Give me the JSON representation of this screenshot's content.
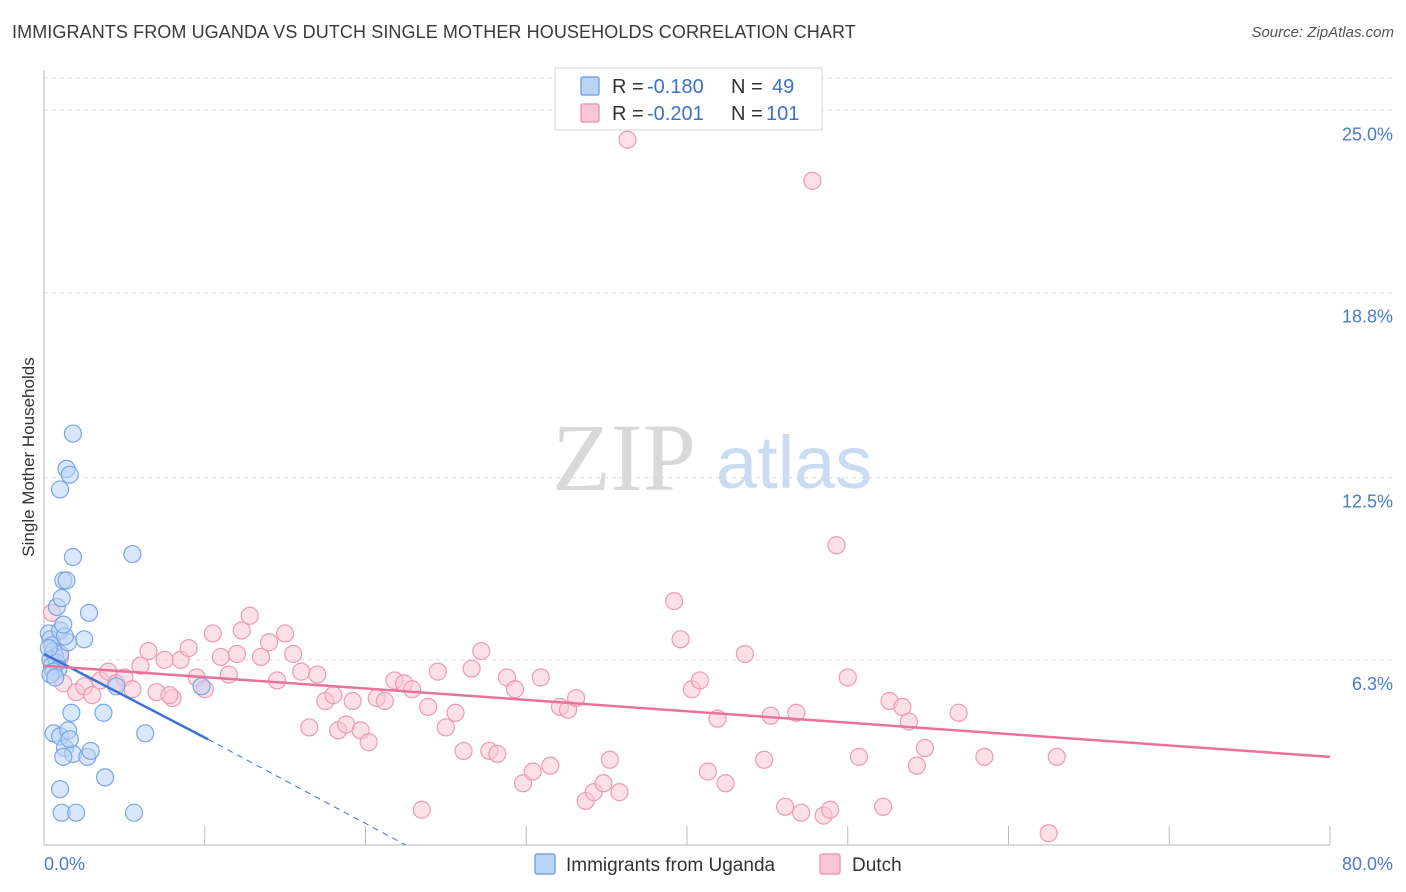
{
  "header": {
    "title": "IMMIGRANTS FROM UGANDA VS DUTCH SINGLE MOTHER HOUSEHOLDS CORRELATION CHART",
    "source": "Source: ZipAtlas.com"
  },
  "watermark": {
    "zip": "ZIP",
    "atlas": "atlas"
  },
  "legend": {
    "rows": [
      {
        "r_label": "R = ",
        "r_value": "-0.180",
        "n_label": "N = ",
        "n_value": "49"
      },
      {
        "r_label": "R = ",
        "r_value": "-0.201",
        "n_label": "N = ",
        "n_value": "101"
      }
    ]
  },
  "colors": {
    "uganda_fill": "#b9d3f5",
    "uganda_stroke": "#7aa6e3",
    "uganda_line": "#3a72d6",
    "dutch_fill": "#f9c6d6",
    "dutch_stroke": "#ee9ab5",
    "dutch_line": "#e8729c",
    "tick_text": "#4a7cc7",
    "grid": "#dcdcdc"
  },
  "chart_data": {
    "type": "scatter",
    "title": "IMMIGRANTS FROM UGANDA VS DUTCH SINGLE MOTHER HOUSEHOLDS CORRELATION CHART",
    "xlabel": "",
    "ylabel": "Single Mother Households",
    "xlim": [
      0,
      80
    ],
    "ylim": [
      0,
      26.1
    ],
    "x_tick_labels": [
      "0.0%",
      "80.0%"
    ],
    "y_ticks": [
      {
        "value": 6.3,
        "label": "6.3%"
      },
      {
        "value": 12.5,
        "label": "12.5%"
      },
      {
        "value": 18.8,
        "label": "18.8%"
      },
      {
        "value": 25.0,
        "label": "25.0%"
      }
    ],
    "series": [
      {
        "name": "Immigrants from Uganda",
        "r": -0.18,
        "n": 49,
        "trend": {
          "x0": 0,
          "y0": 6.5,
          "x1": 10.2,
          "y1": 3.6,
          "dash_to_x": 22.5,
          "dash_to_y": 0
        },
        "points": [
          [
            0.3,
            7.2
          ],
          [
            0.4,
            7.0
          ],
          [
            0.5,
            6.8
          ],
          [
            0.6,
            6.6
          ],
          [
            0.7,
            6.4
          ],
          [
            0.4,
            6.3
          ],
          [
            0.8,
            6.2
          ],
          [
            0.5,
            6.1
          ],
          [
            1.0,
            6.5
          ],
          [
            0.3,
            6.7
          ],
          [
            0.9,
            6.0
          ],
          [
            0.6,
            5.9
          ],
          [
            0.4,
            5.8
          ],
          [
            0.7,
            5.7
          ],
          [
            1.5,
            6.9
          ],
          [
            1.0,
            7.3
          ],
          [
            1.3,
            7.1
          ],
          [
            2.5,
            7.0
          ],
          [
            0.8,
            8.1
          ],
          [
            1.1,
            8.4
          ],
          [
            1.2,
            9.0
          ],
          [
            1.4,
            9.0
          ],
          [
            2.8,
            7.9
          ],
          [
            1.8,
            9.8
          ],
          [
            1.0,
            12.1
          ],
          [
            1.4,
            12.8
          ],
          [
            1.6,
            12.6
          ],
          [
            1.8,
            14.0
          ],
          [
            5.5,
            9.9
          ],
          [
            1.2,
            7.5
          ],
          [
            0.6,
            3.8
          ],
          [
            1.0,
            3.7
          ],
          [
            1.5,
            3.9
          ],
          [
            1.3,
            3.3
          ],
          [
            1.8,
            3.1
          ],
          [
            1.7,
            4.5
          ],
          [
            2.7,
            3.0
          ],
          [
            2.9,
            3.2
          ],
          [
            1.2,
            3.0
          ],
          [
            3.7,
            4.5
          ],
          [
            6.3,
            3.8
          ],
          [
            3.8,
            2.3
          ],
          [
            5.6,
            1.1
          ],
          [
            1.0,
            1.9
          ],
          [
            1.1,
            1.1
          ],
          [
            2.0,
            1.1
          ],
          [
            9.8,
            5.4
          ],
          [
            4.5,
            5.4
          ],
          [
            1.6,
            3.6
          ]
        ]
      },
      {
        "name": "Dutch",
        "r": -0.201,
        "n": 101,
        "trend": {
          "x0": 0,
          "y0": 6.1,
          "x1": 80,
          "y1": 3.0
        },
        "points": [
          [
            0.5,
            7.9
          ],
          [
            1.0,
            6.4
          ],
          [
            1.2,
            5.5
          ],
          [
            2.0,
            5.2
          ],
          [
            2.5,
            5.4
          ],
          [
            3.0,
            5.1
          ],
          [
            3.5,
            5.6
          ],
          [
            4.0,
            5.9
          ],
          [
            4.5,
            5.5
          ],
          [
            5.0,
            5.7
          ],
          [
            5.5,
            5.3
          ],
          [
            6.0,
            6.1
          ],
          [
            6.5,
            6.6
          ],
          [
            7.0,
            5.2
          ],
          [
            7.5,
            6.3
          ],
          [
            8.0,
            5.0
          ],
          [
            8.5,
            6.3
          ],
          [
            9.0,
            6.7
          ],
          [
            9.5,
            5.7
          ],
          [
            10.0,
            5.3
          ],
          [
            10.5,
            7.2
          ],
          [
            11.0,
            6.4
          ],
          [
            11.5,
            5.8
          ],
          [
            12.0,
            6.5
          ],
          [
            12.3,
            7.3
          ],
          [
            12.8,
            7.8
          ],
          [
            13.5,
            6.4
          ],
          [
            14.0,
            6.9
          ],
          [
            14.5,
            5.6
          ],
          [
            15.0,
            7.2
          ],
          [
            15.5,
            6.5
          ],
          [
            16.0,
            5.9
          ],
          [
            16.5,
            4.0
          ],
          [
            17.0,
            5.8
          ],
          [
            17.5,
            4.9
          ],
          [
            18.0,
            5.1
          ],
          [
            18.3,
            3.9
          ],
          [
            18.8,
            4.1
          ],
          [
            19.2,
            4.9
          ],
          [
            19.7,
            3.9
          ],
          [
            20.2,
            3.5
          ],
          [
            20.7,
            5.0
          ],
          [
            21.2,
            4.9
          ],
          [
            21.8,
            5.6
          ],
          [
            22.4,
            5.5
          ],
          [
            22.9,
            5.3
          ],
          [
            23.5,
            1.2
          ],
          [
            23.9,
            4.7
          ],
          [
            24.5,
            5.9
          ],
          [
            25.0,
            4.0
          ],
          [
            25.6,
            4.5
          ],
          [
            26.1,
            3.2
          ],
          [
            26.6,
            6.0
          ],
          [
            27.2,
            6.6
          ],
          [
            27.7,
            3.2
          ],
          [
            28.2,
            3.1
          ],
          [
            28.8,
            5.7
          ],
          [
            29.3,
            5.3
          ],
          [
            29.8,
            2.1
          ],
          [
            30.4,
            2.5
          ],
          [
            30.9,
            5.7
          ],
          [
            31.5,
            2.7
          ],
          [
            32.1,
            4.7
          ],
          [
            32.6,
            4.6
          ],
          [
            33.1,
            5.0
          ],
          [
            33.7,
            1.5
          ],
          [
            34.2,
            1.8
          ],
          [
            34.8,
            2.1
          ],
          [
            35.2,
            2.9
          ],
          [
            35.8,
            1.8
          ],
          [
            36.3,
            24.0
          ],
          [
            39.2,
            8.3
          ],
          [
            39.6,
            7.0
          ],
          [
            40.3,
            5.3
          ],
          [
            40.8,
            5.6
          ],
          [
            41.3,
            2.5
          ],
          [
            41.9,
            4.3
          ],
          [
            42.4,
            2.1
          ],
          [
            43.6,
            6.5
          ],
          [
            44.8,
            2.9
          ],
          [
            45.2,
            4.4
          ],
          [
            46.1,
            1.3
          ],
          [
            46.8,
            4.5
          ],
          [
            47.1,
            1.1
          ],
          [
            47.8,
            22.6
          ],
          [
            48.5,
            1.0
          ],
          [
            48.9,
            1.2
          ],
          [
            49.3,
            10.2
          ],
          [
            50.0,
            5.7
          ],
          [
            50.7,
            3.0
          ],
          [
            52.2,
            1.3
          ],
          [
            52.6,
            4.9
          ],
          [
            53.4,
            4.7
          ],
          [
            53.8,
            4.2
          ],
          [
            54.3,
            2.7
          ],
          [
            54.8,
            3.3
          ],
          [
            56.9,
            4.5
          ],
          [
            58.5,
            3.0
          ],
          [
            63.0,
            3.0
          ],
          [
            62.5,
            0.4
          ],
          [
            7.8,
            5.1
          ]
        ]
      }
    ]
  },
  "bottom_legend": {
    "items": [
      "Immigrants from Uganda",
      "Dutch"
    ]
  }
}
